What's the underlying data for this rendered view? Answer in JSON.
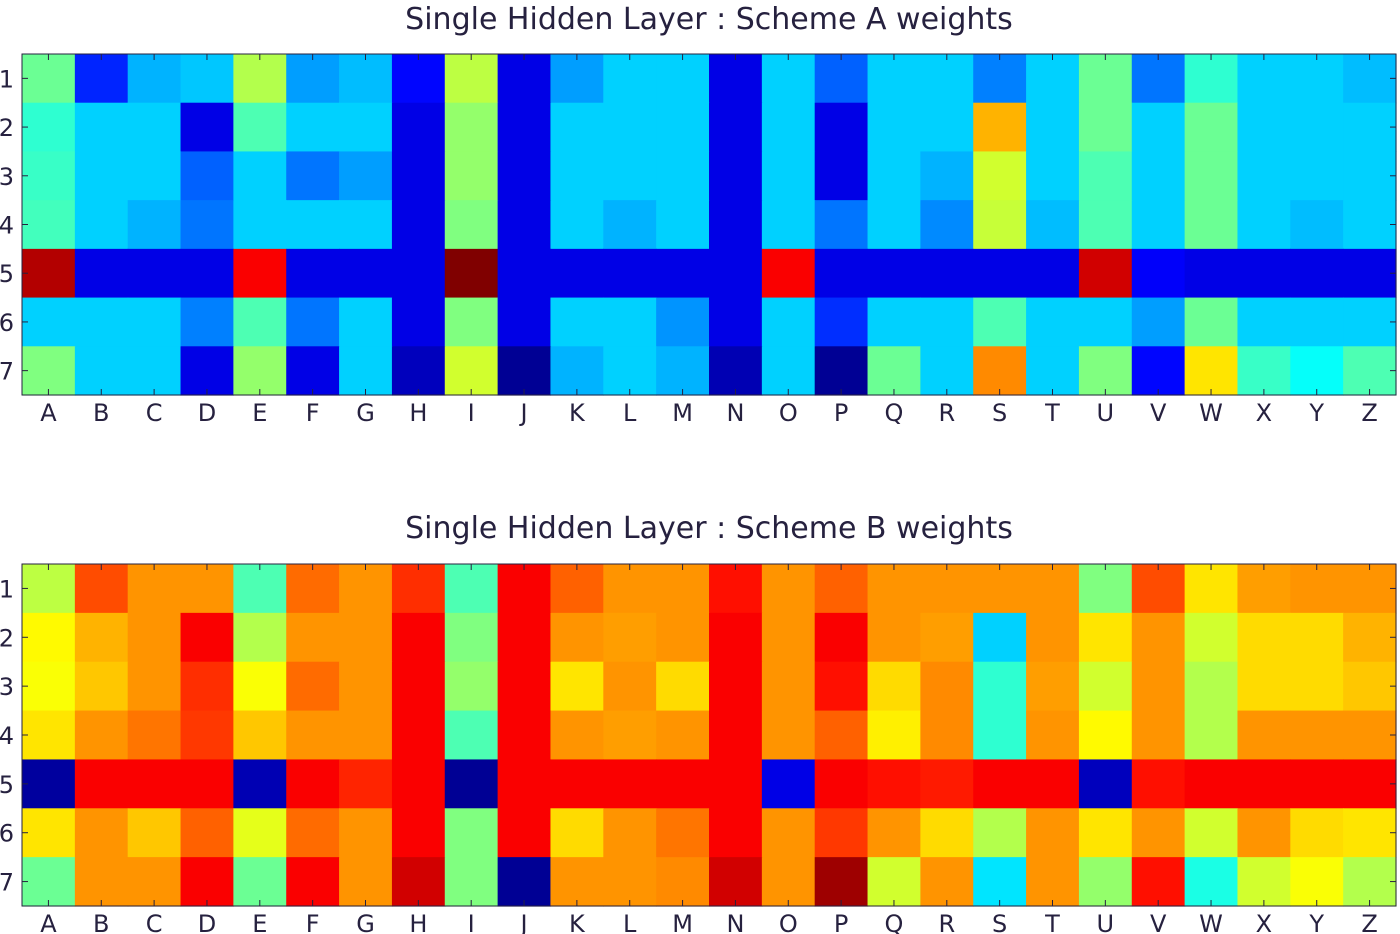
{
  "figure": {
    "titles": [
      "Single Hidden Layer : Scheme A weights",
      "Single Hidden Layer : Scheme B weights"
    ]
  },
  "chart_data": [
    {
      "type": "heatmap",
      "title": "Single Hidden Layer : Scheme A weights",
      "colormap": "jet",
      "x_categories": [
        "A",
        "B",
        "C",
        "D",
        "E",
        "F",
        "G",
        "H",
        "I",
        "J",
        "K",
        "L",
        "M",
        "N",
        "O",
        "P",
        "Q",
        "R",
        "S",
        "T",
        "U",
        "V",
        "W",
        "X",
        "Y",
        "Z"
      ],
      "y_categories": [
        "1",
        "2",
        "3",
        "4",
        "5",
        "6",
        "7"
      ],
      "values": [
        [
          0.48,
          0.16,
          0.3,
          0.32,
          0.55,
          0.28,
          0.31,
          0.13,
          0.56,
          0.1,
          0.28,
          0.33,
          0.33,
          0.1,
          0.33,
          0.22,
          0.33,
          0.33,
          0.25,
          0.33,
          0.48,
          0.24,
          0.42,
          0.33,
          0.33,
          0.31
        ],
        [
          0.42,
          0.33,
          0.33,
          0.1,
          0.45,
          0.33,
          0.33,
          0.1,
          0.52,
          0.1,
          0.33,
          0.33,
          0.33,
          0.1,
          0.33,
          0.1,
          0.33,
          0.33,
          0.7,
          0.33,
          0.48,
          0.33,
          0.48,
          0.33,
          0.33,
          0.33
        ],
        [
          0.43,
          0.33,
          0.33,
          0.22,
          0.33,
          0.24,
          0.28,
          0.1,
          0.52,
          0.1,
          0.33,
          0.33,
          0.33,
          0.1,
          0.33,
          0.1,
          0.33,
          0.3,
          0.58,
          0.33,
          0.45,
          0.33,
          0.48,
          0.33,
          0.33,
          0.33
        ],
        [
          0.44,
          0.33,
          0.3,
          0.24,
          0.33,
          0.33,
          0.33,
          0.1,
          0.5,
          0.1,
          0.33,
          0.3,
          0.33,
          0.1,
          0.33,
          0.24,
          0.33,
          0.26,
          0.57,
          0.31,
          0.45,
          0.33,
          0.48,
          0.33,
          0.31,
          0.33
        ],
        [
          0.95,
          0.1,
          0.1,
          0.1,
          0.88,
          0.1,
          0.1,
          0.1,
          1.0,
          0.1,
          0.1,
          0.1,
          0.1,
          0.1,
          0.88,
          0.1,
          0.1,
          0.1,
          0.1,
          0.1,
          0.92,
          0.12,
          0.1,
          0.1,
          0.1,
          0.1
        ],
        [
          0.33,
          0.33,
          0.33,
          0.25,
          0.45,
          0.24,
          0.33,
          0.1,
          0.5,
          0.1,
          0.33,
          0.33,
          0.27,
          0.1,
          0.33,
          0.17,
          0.33,
          0.33,
          0.45,
          0.33,
          0.33,
          0.28,
          0.48,
          0.33,
          0.33,
          0.33
        ],
        [
          0.5,
          0.33,
          0.33,
          0.1,
          0.52,
          0.1,
          0.33,
          0.06,
          0.58,
          0.02,
          0.3,
          0.33,
          0.3,
          0.05,
          0.33,
          0.02,
          0.48,
          0.33,
          0.74,
          0.33,
          0.5,
          0.13,
          0.65,
          0.43,
          0.38,
          0.45
        ]
      ]
    },
    {
      "type": "heatmap",
      "title": "Single Hidden Layer : Scheme B weights",
      "colormap": "jet",
      "x_categories": [
        "A",
        "B",
        "C",
        "D",
        "E",
        "F",
        "G",
        "H",
        "I",
        "J",
        "K",
        "L",
        "M",
        "N",
        "O",
        "P",
        "Q",
        "R",
        "S",
        "T",
        "U",
        "V",
        "W",
        "X",
        "Y",
        "Z"
      ],
      "y_categories": [
        "1",
        "2",
        "3",
        "4",
        "5",
        "6",
        "7"
      ],
      "values": [
        [
          0.56,
          0.8,
          0.73,
          0.73,
          0.45,
          0.77,
          0.73,
          0.83,
          0.45,
          0.88,
          0.78,
          0.73,
          0.73,
          0.86,
          0.73,
          0.78,
          0.73,
          0.73,
          0.73,
          0.73,
          0.5,
          0.8,
          0.65,
          0.72,
          0.73,
          0.73
        ],
        [
          0.63,
          0.7,
          0.73,
          0.88,
          0.55,
          0.73,
          0.73,
          0.88,
          0.5,
          0.88,
          0.73,
          0.72,
          0.73,
          0.88,
          0.73,
          0.88,
          0.73,
          0.72,
          0.33,
          0.73,
          0.65,
          0.73,
          0.58,
          0.66,
          0.66,
          0.7
        ],
        [
          0.62,
          0.68,
          0.73,
          0.83,
          0.62,
          0.77,
          0.73,
          0.88,
          0.52,
          0.88,
          0.65,
          0.73,
          0.66,
          0.88,
          0.73,
          0.86,
          0.66,
          0.74,
          0.42,
          0.72,
          0.58,
          0.73,
          0.55,
          0.66,
          0.66,
          0.68
        ],
        [
          0.65,
          0.73,
          0.76,
          0.82,
          0.68,
          0.73,
          0.73,
          0.88,
          0.45,
          0.88,
          0.73,
          0.72,
          0.73,
          0.88,
          0.73,
          0.78,
          0.64,
          0.74,
          0.42,
          0.73,
          0.63,
          0.73,
          0.55,
          0.73,
          0.73,
          0.73
        ],
        [
          0.03,
          0.88,
          0.88,
          0.88,
          0.05,
          0.88,
          0.84,
          0.88,
          0.02,
          0.88,
          0.88,
          0.88,
          0.88,
          0.88,
          0.1,
          0.88,
          0.86,
          0.85,
          0.88,
          0.88,
          0.06,
          0.86,
          0.88,
          0.88,
          0.88,
          0.88
        ],
        [
          0.65,
          0.73,
          0.68,
          0.78,
          0.6,
          0.77,
          0.73,
          0.88,
          0.5,
          0.88,
          0.66,
          0.73,
          0.76,
          0.88,
          0.73,
          0.82,
          0.73,
          0.66,
          0.55,
          0.73,
          0.65,
          0.73,
          0.58,
          0.73,
          0.66,
          0.65
        ],
        [
          0.48,
          0.73,
          0.73,
          0.88,
          0.48,
          0.88,
          0.73,
          0.92,
          0.5,
          0.02,
          0.73,
          0.73,
          0.74,
          0.92,
          0.73,
          0.97,
          0.58,
          0.73,
          0.35,
          0.73,
          0.52,
          0.86,
          0.4,
          0.58,
          0.62,
          0.55
        ]
      ]
    }
  ]
}
